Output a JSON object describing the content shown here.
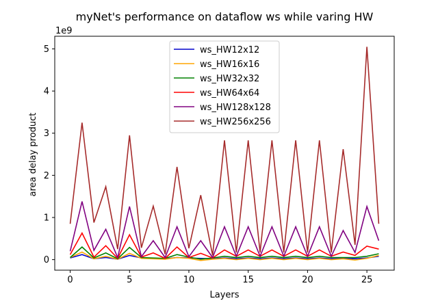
{
  "chart_data": {
    "type": "line",
    "title": "myNet's performance on dataflow ws while varing HW",
    "xlabel": "Layers",
    "ylabel": "area delay product",
    "y_offset_label": "1e9",
    "xlim": [
      -1.3,
      27.3
    ],
    "ylim": [
      -0.25,
      5.3
    ],
    "x_ticks": [
      0,
      5,
      10,
      15,
      20,
      25
    ],
    "y_ticks": [
      0,
      1,
      2,
      3,
      4,
      5
    ],
    "grid": false,
    "legend_position": "upper center",
    "x": [
      0,
      1,
      2,
      3,
      4,
      5,
      6,
      7,
      8,
      9,
      10,
      11,
      12,
      13,
      14,
      15,
      16,
      17,
      18,
      19,
      20,
      21,
      22,
      23,
      24,
      25,
      26
    ],
    "series": [
      {
        "name": "ws_HW12x12",
        "color": "#0000cc",
        "values": [
          0.04,
          0.12,
          0.02,
          0.05,
          0.01,
          0.1,
          0.04,
          0.03,
          0.02,
          0.05,
          0.04,
          0.03,
          0.02,
          0.04,
          0.02,
          0.04,
          0.02,
          0.04,
          0.02,
          0.04,
          0.02,
          0.04,
          0.02,
          0.03,
          0.02,
          0.04,
          0.08
        ]
      },
      {
        "name": "ws_HW16x16",
        "color": "#ffa500",
        "values": [
          0.05,
          0.18,
          0.02,
          0.08,
          0.01,
          0.15,
          0.03,
          0.02,
          0.01,
          0.05,
          0.03,
          -0.02,
          0.01,
          0.03,
          0.0,
          0.03,
          0.0,
          0.03,
          0.0,
          0.03,
          0.0,
          0.03,
          0.0,
          0.02,
          -0.01,
          0.03,
          0.1
        ]
      },
      {
        "name": "ws_HW32x32",
        "color": "#008000",
        "values": [
          0.05,
          0.3,
          0.04,
          0.16,
          0.02,
          0.29,
          0.05,
          0.04,
          0.03,
          0.12,
          0.06,
          0.01,
          0.04,
          0.08,
          0.05,
          0.08,
          0.05,
          0.08,
          0.05,
          0.08,
          0.05,
          0.08,
          0.05,
          0.05,
          0.05,
          0.08,
          0.14
        ]
      },
      {
        "name": "ws_HW64x64",
        "color": "#ff0000",
        "values": [
          0.12,
          0.63,
          0.06,
          0.33,
          0.03,
          0.59,
          0.06,
          0.16,
          0.03,
          0.3,
          0.05,
          0.15,
          0.04,
          0.23,
          0.08,
          0.23,
          0.08,
          0.23,
          0.08,
          0.23,
          0.08,
          0.23,
          0.08,
          0.18,
          0.1,
          0.32,
          0.25
        ]
      },
      {
        "name": "ws_HW128x128",
        "color": "#800080",
        "values": [
          0.2,
          1.38,
          0.22,
          0.72,
          0.05,
          1.26,
          0.07,
          0.45,
          0.05,
          0.78,
          0.07,
          0.45,
          0.05,
          0.78,
          0.08,
          0.78,
          0.08,
          0.78,
          0.08,
          0.78,
          0.08,
          0.78,
          0.08,
          0.69,
          0.17,
          1.26,
          0.45
        ]
      },
      {
        "name": "ws_HW256x256",
        "color": "#a52a2a",
        "values": [
          0.85,
          3.25,
          0.88,
          1.73,
          0.25,
          2.95,
          0.28,
          1.27,
          0.13,
          2.2,
          0.27,
          1.53,
          0.1,
          2.83,
          0.17,
          2.83,
          0.17,
          2.83,
          0.17,
          2.83,
          0.17,
          2.83,
          0.17,
          2.62,
          0.35,
          5.05,
          0.85
        ]
      }
    ]
  }
}
